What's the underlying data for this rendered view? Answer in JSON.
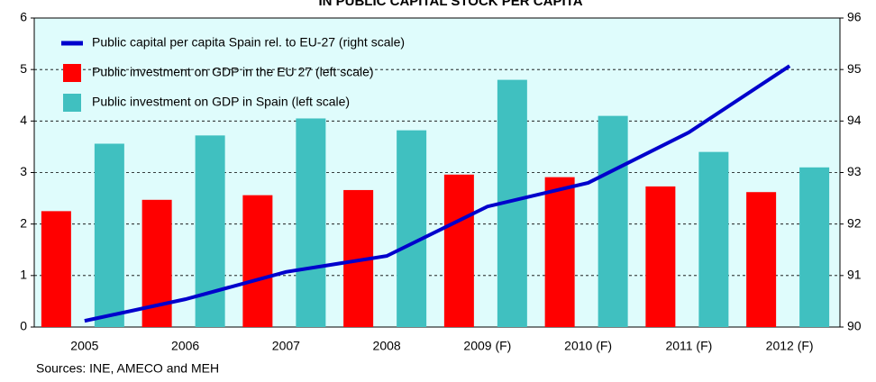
{
  "chart_data": {
    "type": "bar-line",
    "title": "IN PUBLIC CAPITAL STOCK PER CAPITA",
    "source": "Sources: INE, AMECO and MEH",
    "categories": [
      "2005",
      "2006",
      "2007",
      "2008",
      "2009 (F)",
      "2010 (F)",
      "2011 (F)",
      "2012 (F)"
    ],
    "series": [
      {
        "name": "Public capital per capita Spain rel. to EU-27 (right scale)",
        "color": "#0000cc",
        "type": "line",
        "axis": "y2",
        "values": [
          90.12,
          90.54,
          91.07,
          91.38,
          92.34,
          92.8,
          93.78,
          95.07
        ]
      },
      {
        "name": "Public investment on GDP in the EU 27 (left scale)",
        "color": "#ff0000",
        "type": "bar",
        "values": [
          2.25,
          2.47,
          2.56,
          2.66,
          2.96,
          2.91,
          2.73,
          2.62
        ]
      },
      {
        "name": "Public investment on GDP in Spain (left scale)",
        "color": "#40c0c0",
        "type": "bar",
        "values": [
          3.56,
          3.72,
          4.05,
          3.82,
          4.8,
          4.1,
          3.4,
          3.1
        ]
      }
    ],
    "ylim": [
      0,
      6
    ],
    "yticks": [
      0,
      1,
      2,
      3,
      4,
      5,
      6
    ],
    "y2lim": [
      90,
      96
    ],
    "y2ticks": [
      90,
      91,
      92,
      93,
      94,
      95,
      96
    ],
    "grid": true,
    "legend": "top-left",
    "background": "#dffcfc"
  }
}
